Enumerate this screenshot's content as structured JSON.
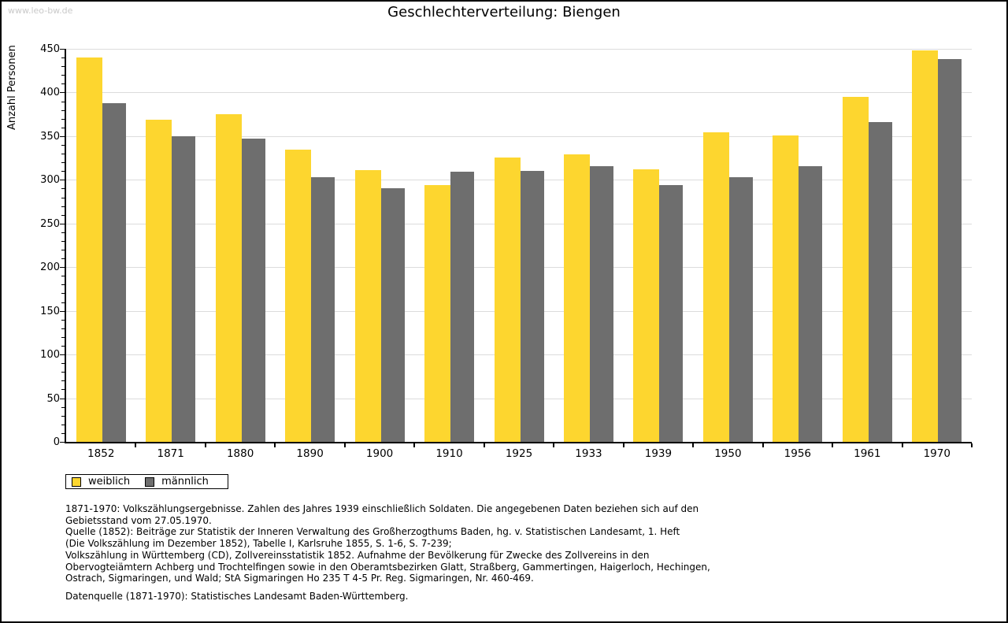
{
  "watermark": "www.leo-bw.de",
  "chart_data": {
    "type": "bar",
    "title": "Geschlechterverteilung: Biengen",
    "ylabel": "Anzahl Personen",
    "categories": [
      "1852",
      "1871",
      "1880",
      "1890",
      "1900",
      "1910",
      "1925",
      "1933",
      "1939",
      "1950",
      "1956",
      "1961",
      "1970"
    ],
    "series": [
      {
        "name": "weiblich",
        "color": "#fdd62f",
        "values": [
          440,
          369,
          375,
          335,
          311,
          294,
          326,
          329,
          312,
          354,
          351,
          395,
          448
        ]
      },
      {
        "name": "männlich",
        "color": "#6e6e6e",
        "values": [
          388,
          350,
          347,
          303,
          290,
          309,
          310,
          316,
          294,
          303,
          316,
          366,
          438
        ]
      }
    ],
    "ylim": [
      0,
      450
    ],
    "ytick_major": 50,
    "ytick_minor": 10,
    "grid": true,
    "gridline_color": "#dcdcdc",
    "legend_position": "bottom-left"
  },
  "footnotes": {
    "lines": [
      "1871-1970: Volkszählungsergebnisse. Zahlen des Jahres 1939 einschließlich Soldaten. Die angegebenen Daten beziehen sich auf den",
      "Gebietsstand vom 27.05.1970.",
      "Quelle (1852): Beiträge zur Statistik der Inneren Verwaltung des Großherzogthums Baden, hg. v. Statistischen Landesamt, 1. Heft",
      "(Die Volkszählung im Dezember 1852), Tabelle I, Karlsruhe 1855, S. 1-6, S. 7-239;",
      "Volkszählung in Württemberg (CD), Zollvereinsstatistik 1852. Aufnahme der Bevölkerung für Zwecke des Zollvereins in den",
      "Obervogteiämtern Achberg und Trochtelfingen sowie in den Oberamtsbezirken Glatt, Straßberg, Gammertingen, Haigerloch, Hechingen,",
      "Ostrach, Sigmaringen, und Wald; StA Sigmaringen Ho 235 T 4-5 Pr. Reg. Sigmaringen, Nr. 460-469."
    ],
    "datasource": "Datenquelle (1871-1970): Statistisches Landesamt Baden-Württemberg."
  }
}
